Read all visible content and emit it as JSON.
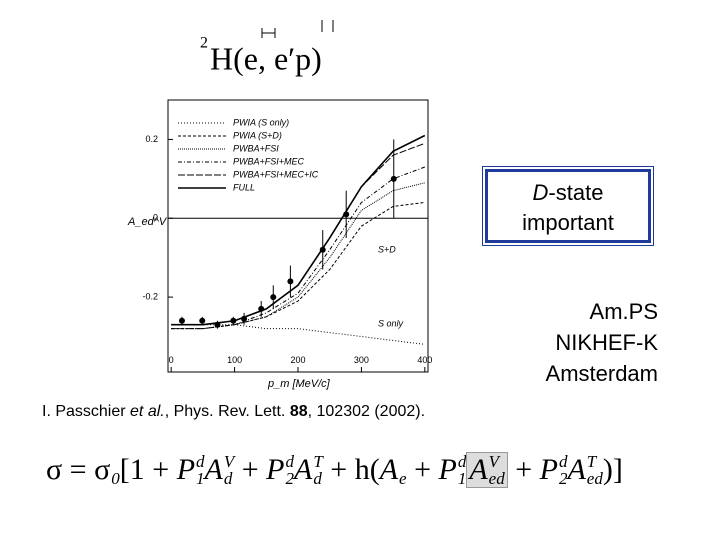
{
  "chart_data": {
    "type": "line",
    "title_mass": "2",
    "title": "H(e, e′p)",
    "x_label": "p_m [MeV/c]",
    "y_label": "A_ed^V",
    "xlim": [
      -5,
      405
    ],
    "ylim": [
      -0.39,
      0.3
    ],
    "xticks": [
      0,
      100,
      200,
      300,
      400
    ],
    "yticks": [
      -0.2,
      0,
      0.2
    ],
    "x": [
      0,
      50,
      100,
      150,
      200,
      250,
      300,
      350,
      400
    ],
    "series": [
      {
        "name": "PWIA (S only)",
        "color": "#000",
        "style": "dotted",
        "values": [
          -0.27,
          -0.27,
          -0.27,
          -0.28,
          -0.28,
          -0.29,
          -0.3,
          -0.31,
          -0.32
        ]
      },
      {
        "name": "PWIA (S+D)",
        "color": "#000",
        "style": "dashed",
        "values": [
          -0.28,
          -0.28,
          -0.27,
          -0.25,
          -0.21,
          -0.13,
          -0.02,
          0.03,
          0.04
        ]
      },
      {
        "name": "PWBA+FSI",
        "color": "#000",
        "style": "densedot",
        "values": [
          -0.28,
          -0.28,
          -0.27,
          -0.25,
          -0.2,
          -0.1,
          0.02,
          0.07,
          0.09
        ]
      },
      {
        "name": "PWBA+FSI+MEC",
        "color": "#000",
        "style": "dashdot",
        "values": [
          -0.28,
          -0.28,
          -0.27,
          -0.24,
          -0.19,
          -0.08,
          0.04,
          0.1,
          0.13
        ]
      },
      {
        "name": "PWBA+FSI+MEC+IC",
        "color": "#000",
        "style": "longdash",
        "values": [
          -0.27,
          -0.27,
          -0.26,
          -0.23,
          -0.17,
          -0.05,
          0.08,
          0.16,
          0.19
        ]
      },
      {
        "name": "FULL",
        "color": "#000",
        "style": "solid",
        "values": [
          -0.27,
          -0.27,
          -0.26,
          -0.23,
          -0.17,
          -0.05,
          0.08,
          0.17,
          0.21
        ]
      }
    ],
    "points": {
      "x": [
        17,
        49,
        73,
        98,
        115,
        142,
        161,
        188,
        239,
        276,
        351
      ],
      "values": [
        -0.26,
        -0.26,
        -0.27,
        -0.26,
        -0.255,
        -0.23,
        -0.2,
        -0.16,
        -0.08,
        0.01,
        0.1
      ],
      "errors": [
        0.01,
        0.01,
        0.01,
        0.01,
        0.015,
        0.02,
        0.03,
        0.04,
        0.05,
        0.06,
        0.1
      ]
    },
    "annotations": [
      "S+D",
      "S only"
    ]
  },
  "note": {
    "italic": "D",
    "rest": "-state",
    "line2": "important"
  },
  "lab": [
    "Am.PS",
    "NIKHEF-K",
    "Amsterdam"
  ],
  "reference": [
    "I. Passchier ",
    "et al.",
    ", Phys. Rev. Lett. ",
    "88",
    ", 102302 (2002)."
  ],
  "formula": [
    {
      "base": "σ = σ",
      "sub": "0"
    },
    {
      "base": "["
    },
    {
      "base": "1 + "
    },
    {
      "base": "P",
      "sup": "d",
      "sub": "1"
    },
    {
      "base": "A",
      "sup": "V",
      "sub": "d"
    },
    {
      "base": " + "
    },
    {
      "base": "P",
      "sup": "d",
      "sub": "2"
    },
    {
      "base": "A",
      "sup": "T",
      "sub": "d"
    },
    {
      "base": " + h("
    },
    {
      "base": "A",
      "sub": "e"
    },
    {
      "base": " + "
    },
    {
      "base": "P",
      "sup": "d",
      "sub": "1"
    },
    {
      "base": "A",
      "sup": "V",
      "sub": "ed",
      "highlight": true
    },
    {
      "base": " + "
    },
    {
      "base": "P",
      "sup": "d",
      "sub": "2"
    },
    {
      "base": "A",
      "sup": "T",
      "sub": "ed"
    },
    {
      "base": ")]"
    }
  ]
}
